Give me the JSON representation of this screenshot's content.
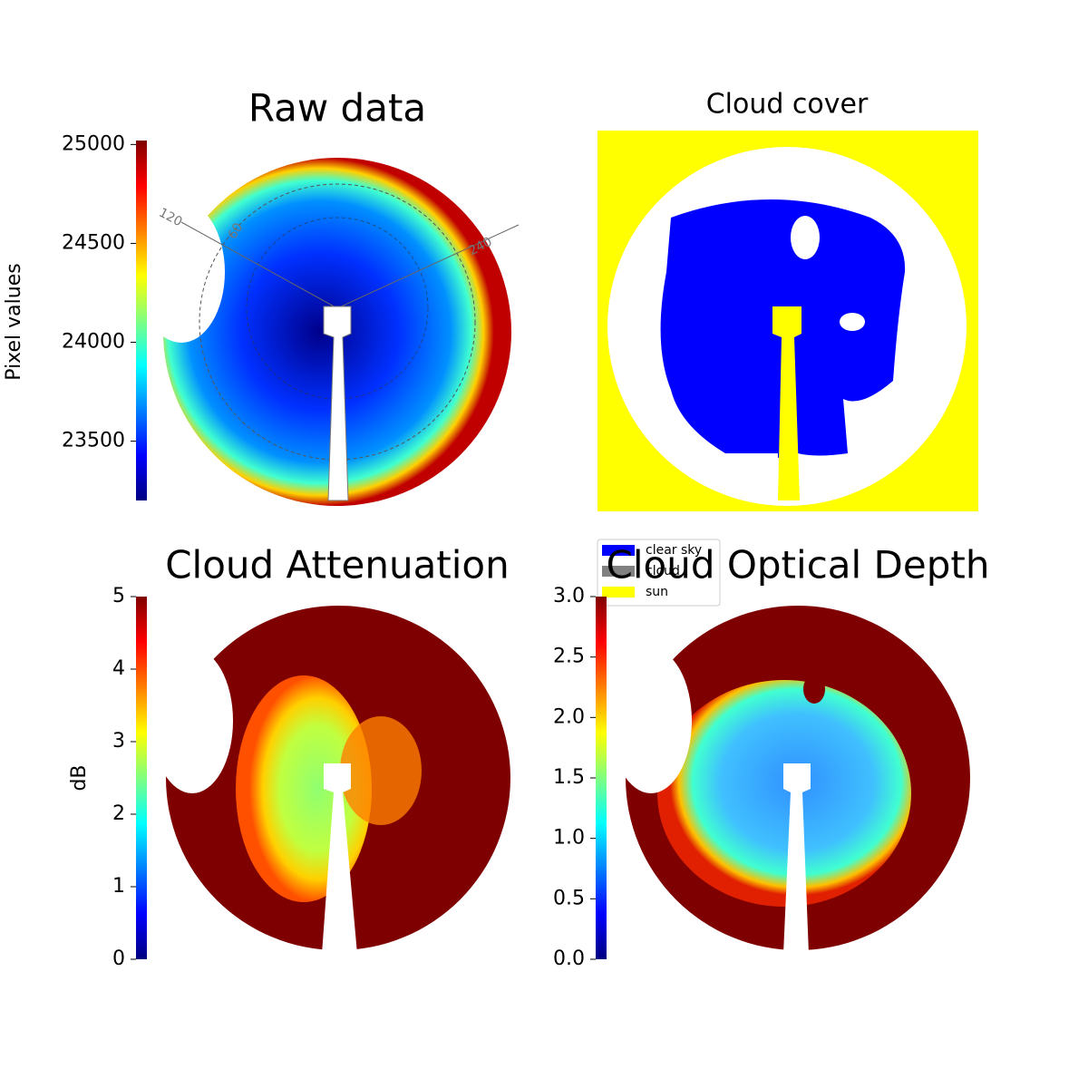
{
  "chart_data": [
    {
      "type": "image",
      "title": "Raw data",
      "colorbar_label": "Pixel values",
      "colormap": "jet",
      "ylim": [
        23200,
        25020
      ],
      "yticks": [
        23500,
        24000,
        24500,
        25000
      ],
      "annotations": [
        "120",
        "60",
        "240"
      ]
    },
    {
      "type": "categorical-image",
      "title": "Cloud cover",
      "series": [
        {
          "name": "clear sky",
          "color": "#0000ff"
        },
        {
          "name": "cloud",
          "color": "#808080"
        },
        {
          "name": "sun",
          "color": "#ffff00"
        }
      ]
    },
    {
      "type": "image",
      "title": "Cloud Attenuation",
      "colorbar_label": "dB",
      "colormap": "jet",
      "ylim": [
        0,
        5
      ],
      "yticks": [
        0,
        1,
        2,
        3,
        4,
        5
      ]
    },
    {
      "type": "image",
      "title": "Cloud Optical Depth",
      "colormap": "jet",
      "ylim": [
        0,
        3
      ],
      "yticks": [
        {
          "value": 0,
          "label": "0.0"
        },
        {
          "value": 0.5,
          "label": "0.5"
        },
        {
          "value": 1,
          "label": "1.0"
        },
        {
          "value": 1.5,
          "label": "1.5"
        },
        {
          "value": 2,
          "label": "2.0"
        },
        {
          "value": 2.5,
          "label": "2.5"
        },
        {
          "value": 3,
          "label": "3.0"
        }
      ]
    }
  ]
}
